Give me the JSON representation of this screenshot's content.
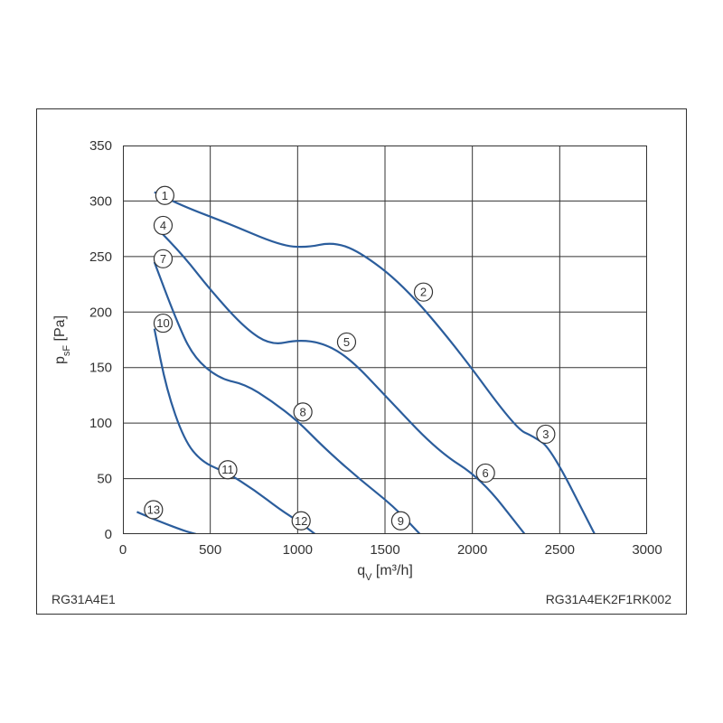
{
  "chart": {
    "type": "line",
    "xlabel": "q",
    "xlabel_sub": "V",
    "xlabel_unit": " [m³/h]",
    "ylabel": "p",
    "ylabel_sub": "sF",
    "ylabel_unit": " [Pa]",
    "footer_left": "RG31A4E1",
    "footer_right": "RG31A4EK2F1RK002",
    "xlim": [
      0,
      3000
    ],
    "ylim": [
      0,
      350
    ],
    "xtick_step": 500,
    "ytick_step": 50,
    "xticks": [
      0,
      500,
      1000,
      1500,
      2000,
      2500,
      3000
    ],
    "yticks": [
      0,
      50,
      100,
      150,
      200,
      250,
      300,
      350
    ],
    "line_color": "#2b5d9c",
    "line_width": 2.2,
    "background_color": "#ffffff",
    "grid_color": "#333333",
    "marker_fill": "#ffffff",
    "marker_stroke": "#333333",
    "marker_radius": 10,
    "label_fontsize": 16,
    "tick_fontsize": 15,
    "series": [
      {
        "points": [
          [
            180,
            308
          ],
          [
            350,
            295
          ],
          [
            600,
            280
          ],
          [
            900,
            260
          ],
          [
            1050,
            258
          ],
          [
            1200,
            263
          ],
          [
            1350,
            255
          ],
          [
            1600,
            225
          ],
          [
            1900,
            170
          ],
          [
            2250,
            95
          ],
          [
            2350,
            88
          ],
          [
            2450,
            77
          ],
          [
            2700,
            0
          ]
        ]
      },
      {
        "points": [
          [
            180,
            278
          ],
          [
            350,
            250
          ],
          [
            500,
            220
          ],
          [
            700,
            185
          ],
          [
            850,
            170
          ],
          [
            1000,
            175
          ],
          [
            1150,
            172
          ],
          [
            1300,
            158
          ],
          [
            1500,
            125
          ],
          [
            1800,
            75
          ],
          [
            2050,
            50
          ],
          [
            2300,
            0
          ]
        ]
      },
      {
        "points": [
          [
            180,
            245
          ],
          [
            300,
            195
          ],
          [
            400,
            160
          ],
          [
            550,
            140
          ],
          [
            700,
            135
          ],
          [
            850,
            120
          ],
          [
            1000,
            102
          ],
          [
            1150,
            78
          ],
          [
            1350,
            50
          ],
          [
            1550,
            25
          ],
          [
            1700,
            0
          ]
        ]
      },
      {
        "points": [
          [
            180,
            185
          ],
          [
            250,
            130
          ],
          [
            350,
            85
          ],
          [
            450,
            65
          ],
          [
            600,
            55
          ],
          [
            750,
            40
          ],
          [
            900,
            22
          ],
          [
            1000,
            12
          ],
          [
            1100,
            0
          ]
        ]
      },
      {
        "points": [
          [
            80,
            20
          ],
          [
            200,
            12
          ],
          [
            350,
            3
          ],
          [
            420,
            0
          ]
        ]
      }
    ],
    "markers": [
      {
        "label": "1",
        "x": 240,
        "y": 305
      },
      {
        "label": "2",
        "x": 1720,
        "y": 218
      },
      {
        "label": "3",
        "x": 2420,
        "y": 90
      },
      {
        "label": "4",
        "x": 230,
        "y": 278
      },
      {
        "label": "5",
        "x": 1280,
        "y": 173
      },
      {
        "label": "6",
        "x": 2075,
        "y": 55
      },
      {
        "label": "7",
        "x": 230,
        "y": 248
      },
      {
        "label": "8",
        "x": 1030,
        "y": 110
      },
      {
        "label": "9",
        "x": 1590,
        "y": 12
      },
      {
        "label": "10",
        "x": 230,
        "y": 190
      },
      {
        "label": "11",
        "x": 600,
        "y": 58
      },
      {
        "label": "12",
        "x": 1020,
        "y": 12
      },
      {
        "label": "13",
        "x": 175,
        "y": 22
      }
    ]
  }
}
